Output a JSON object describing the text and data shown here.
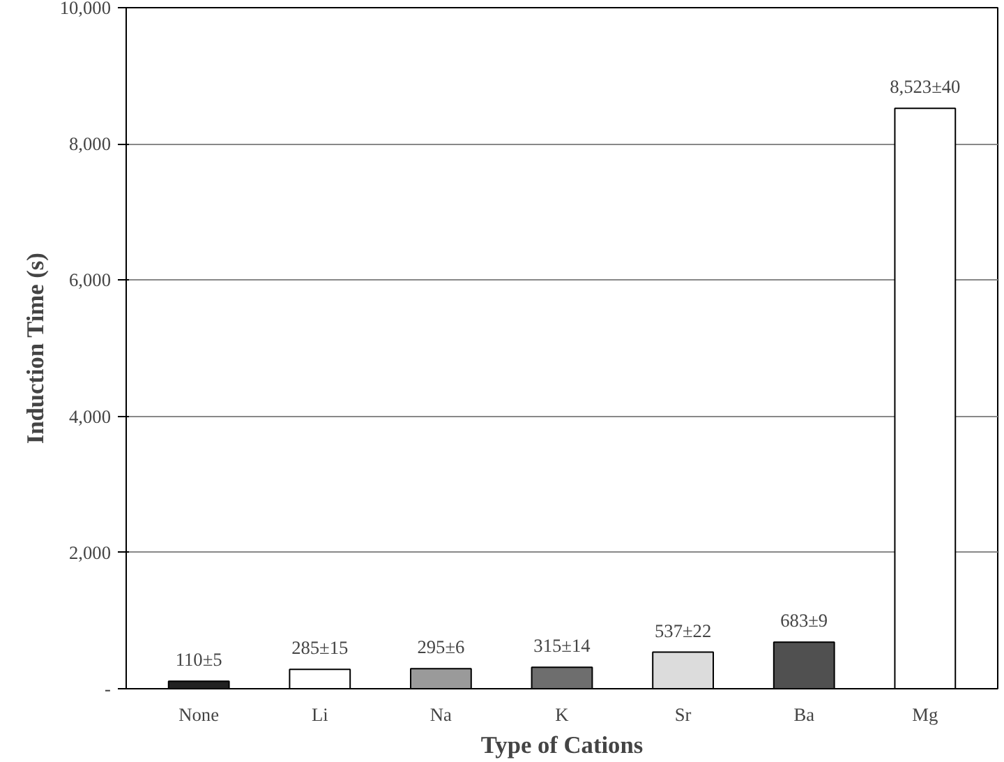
{
  "chart_data": {
    "type": "bar",
    "xlabel": "Type of Cations",
    "ylabel": "Induction Time (s)",
    "categories": [
      "None",
      "Li",
      "Na",
      "K",
      "Sr",
      "Ba",
      "Mg"
    ],
    "values": [
      110,
      285,
      295,
      315,
      537,
      683,
      8523
    ],
    "value_labels": [
      "110±5",
      "285±15",
      "295±6",
      "315±14",
      "537±22",
      "683±9",
      "8,523±40"
    ],
    "colors": [
      "#222222",
      "#ffffff",
      "#9a9a9a",
      "#6e6e6e",
      "#dcdcdc",
      "#505050",
      "#ffffff"
    ],
    "ylim": [
      0,
      10000
    ],
    "yticks": [
      {
        "value": 0,
        "label": "-"
      },
      {
        "value": 2000,
        "label": "2,000"
      },
      {
        "value": 4000,
        "label": "4,000"
      },
      {
        "value": 6000,
        "label": "6,000"
      },
      {
        "value": 8000,
        "label": "8,000"
      },
      {
        "value": 10000,
        "label": "10,000"
      }
    ],
    "grid": "y"
  }
}
